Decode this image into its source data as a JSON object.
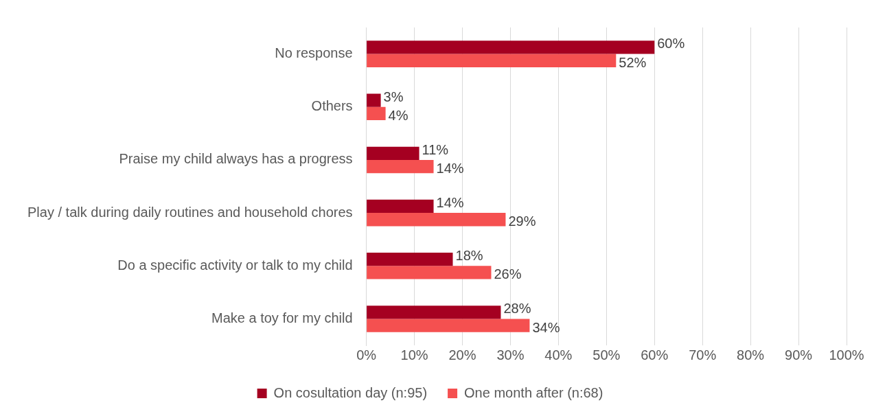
{
  "chart_data": {
    "type": "bar",
    "orientation": "horizontal",
    "categories": [
      "No response",
      "Others",
      "Praise my child always has a progress",
      "Play / talk during daily routines and household chores",
      "Do a specific activity or talk to my child",
      "Make a toy for my child"
    ],
    "series": [
      {
        "name": "On cosultation day (n:95)",
        "color": "#a50021",
        "values": [
          60,
          3,
          11,
          14,
          18,
          28
        ],
        "value_labels": [
          "60%",
          "3%",
          "11%",
          "14%",
          "18%",
          "28%"
        ]
      },
      {
        "name": "One month after (n:68)",
        "color": "#f55050",
        "values": [
          52,
          4,
          14,
          29,
          26,
          34
        ],
        "value_labels": [
          "52%",
          "4%",
          "14%",
          "29%",
          "26%",
          "34%"
        ]
      }
    ],
    "xlim": [
      0,
      100
    ],
    "xticks": [
      {
        "value": 0,
        "label": "0%"
      },
      {
        "value": 10,
        "label": "10%"
      },
      {
        "value": 20,
        "label": "20%"
      },
      {
        "value": 30,
        "label": "30%"
      },
      {
        "value": 40,
        "label": "40%"
      },
      {
        "value": 50,
        "label": "50%"
      },
      {
        "value": 60,
        "label": "60%"
      },
      {
        "value": 70,
        "label": "70%"
      },
      {
        "value": 80,
        "label": "80%"
      },
      {
        "value": 90,
        "label": "90%"
      },
      {
        "value": 100,
        "label": "100%"
      }
    ],
    "grid": "x",
    "legend": "bottom"
  }
}
